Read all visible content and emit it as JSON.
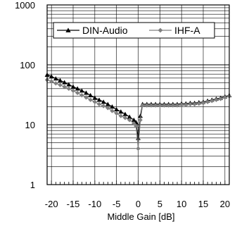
{
  "chart_data": {
    "type": "line",
    "title": "",
    "xlabel": "Middle Gain [dB]",
    "ylabel": "",
    "xlim": [
      -21,
      21
    ],
    "ylim": [
      1,
      1000
    ],
    "yscale": "log",
    "grid": true,
    "legend_position": "top-right",
    "x_ticks": [
      -20,
      -15,
      -10,
      -5,
      0,
      5,
      10,
      15,
      20
    ],
    "x_tick_labels": [
      "-20",
      "-15",
      "-10",
      "-5",
      "0",
      "5",
      "10",
      "15",
      "20"
    ],
    "y_ticks": [
      1,
      10,
      100,
      1000
    ],
    "y_tick_labels": [
      "1",
      "10",
      "100",
      "1000"
    ],
    "series": [
      {
        "name": "DIN-Audio",
        "color": "#000000",
        "marker": "triangle",
        "x": [
          -21,
          -20,
          -19,
          -18,
          -17,
          -16,
          -15,
          -14,
          -13,
          -12,
          -11,
          -10,
          -9,
          -8,
          -7,
          -6,
          -5,
          -4,
          -3,
          -2,
          -1,
          -0.5,
          0,
          0.5,
          1,
          2,
          3,
          4,
          5,
          6,
          7,
          8,
          9,
          10,
          11,
          12,
          13,
          14,
          15,
          16,
          17,
          18,
          19,
          20,
          21
        ],
        "values": [
          68,
          64,
          59,
          55,
          51,
          47,
          43,
          40,
          37,
          34,
          31,
          28,
          26,
          24,
          22,
          20,
          18,
          16.5,
          15,
          13.5,
          12,
          11,
          6,
          14,
          22,
          22,
          22,
          22,
          22,
          22,
          22,
          22,
          22,
          22.5,
          22.5,
          23,
          23,
          23.5,
          24,
          25,
          26,
          27,
          28,
          29.5,
          31
        ]
      },
      {
        "name": "IHF-A",
        "color": "#808080",
        "marker": "diamond",
        "x": [
          -21,
          -20,
          -19,
          -18,
          -17,
          -16,
          -15,
          -14,
          -13,
          -12,
          -11,
          -10,
          -9,
          -8,
          -7,
          -6,
          -5,
          -4,
          -3,
          -2,
          -1,
          -0.5,
          0,
          0.5,
          1,
          2,
          3,
          4,
          5,
          6,
          7,
          8,
          9,
          10,
          11,
          12,
          13,
          14,
          15,
          16,
          17,
          18,
          19,
          20,
          21
        ],
        "values": [
          56,
          53,
          49,
          46,
          43,
          40,
          37,
          34,
          31,
          28.5,
          26,
          24,
          22,
          20.5,
          19,
          17,
          15.5,
          14,
          13,
          12,
          10.5,
          9.5,
          4,
          12,
          21,
          21,
          21,
          21,
          21,
          21,
          21,
          21,
          21,
          21.5,
          21.5,
          22,
          22,
          22.5,
          23,
          24,
          25,
          26,
          27,
          28.5,
          30
        ]
      }
    ]
  }
}
